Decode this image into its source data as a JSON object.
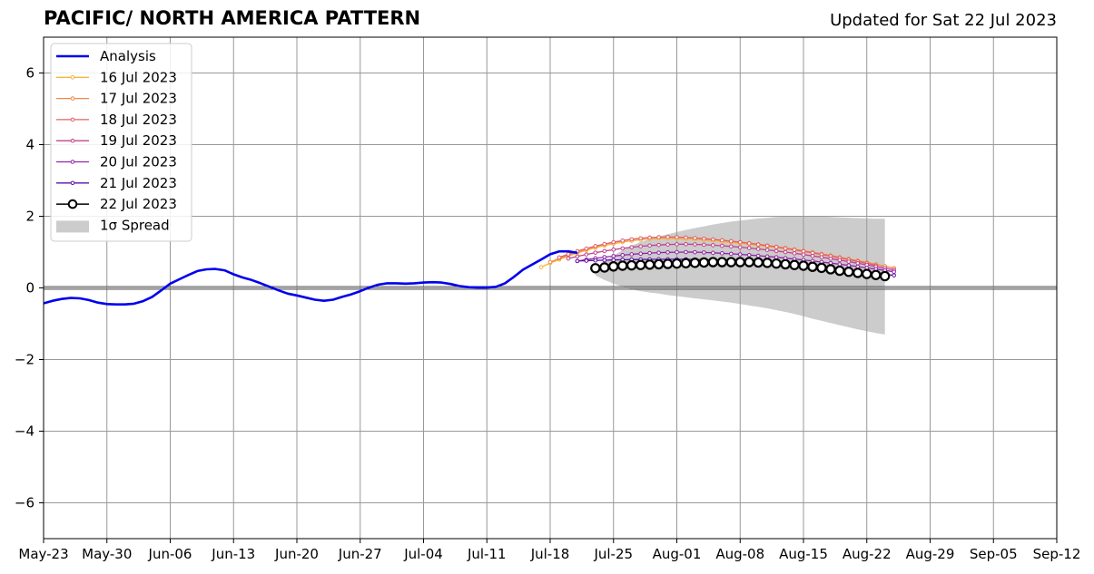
{
  "chart_data": {
    "type": "line",
    "title": "PACIFIC/ NORTH AMERICA PATTERN",
    "subtitle": "Updated for Sat 22 Jul 2023",
    "ylim": [
      -7,
      7
    ],
    "xlim": [
      "2023-05-23",
      "2023-09-12"
    ],
    "yticks": [
      6,
      4,
      2,
      0,
      -2,
      -4,
      -6
    ],
    "ytick_labels": [
      "6",
      "4",
      "2",
      "0",
      "−2",
      "−4",
      "−6"
    ],
    "xticks": [
      "2023-05-23",
      "2023-05-30",
      "2023-06-06",
      "2023-06-13",
      "2023-06-20",
      "2023-06-27",
      "2023-07-04",
      "2023-07-11",
      "2023-07-18",
      "2023-07-25",
      "2023-08-01",
      "2023-08-08",
      "2023-08-15",
      "2023-08-22",
      "2023-08-29",
      "2023-09-05",
      "2023-09-12"
    ],
    "xtick_labels": [
      "May-23",
      "May-30",
      "Jun-06",
      "Jun-13",
      "Jun-20",
      "Jun-27",
      "Jul-04",
      "Jul-11",
      "Jul-18",
      "Jul-25",
      "Aug-01",
      "Aug-08",
      "Aug-15",
      "Aug-22",
      "Aug-29",
      "Sep-05",
      "Sep-12"
    ],
    "grid": true,
    "legend_position": "top-left",
    "analysis": {
      "name": "Analysis",
      "color": "#0000ee",
      "x": [
        "2023-05-23",
        "2023-05-24",
        "2023-05-25",
        "2023-05-26",
        "2023-05-27",
        "2023-05-28",
        "2023-05-29",
        "2023-05-30",
        "2023-05-31",
        "2023-06-01",
        "2023-06-02",
        "2023-06-03",
        "2023-06-04",
        "2023-06-05",
        "2023-06-06",
        "2023-06-07",
        "2023-06-08",
        "2023-06-09",
        "2023-06-10",
        "2023-06-11",
        "2023-06-12",
        "2023-06-13",
        "2023-06-14",
        "2023-06-15",
        "2023-06-16",
        "2023-06-17",
        "2023-06-18",
        "2023-06-19",
        "2023-06-20",
        "2023-06-21",
        "2023-06-22",
        "2023-06-23",
        "2023-06-24",
        "2023-06-25",
        "2023-06-26",
        "2023-06-27",
        "2023-06-28",
        "2023-06-29",
        "2023-06-30",
        "2023-07-01",
        "2023-07-02",
        "2023-07-03",
        "2023-07-04",
        "2023-07-05",
        "2023-07-06",
        "2023-07-07",
        "2023-07-08",
        "2023-07-09",
        "2023-07-10",
        "2023-07-11",
        "2023-07-12",
        "2023-07-13",
        "2023-07-14",
        "2023-07-15",
        "2023-07-16",
        "2023-07-17",
        "2023-07-18",
        "2023-07-19",
        "2023-07-20",
        "2023-07-21"
      ],
      "y": [
        -0.43,
        -0.36,
        -0.31,
        -0.28,
        -0.29,
        -0.34,
        -0.41,
        -0.45,
        -0.46,
        -0.46,
        -0.44,
        -0.37,
        -0.25,
        -0.07,
        0.12,
        0.24,
        0.36,
        0.47,
        0.52,
        0.53,
        0.49,
        0.38,
        0.29,
        0.22,
        0.13,
        0.03,
        -0.07,
        -0.16,
        -0.21,
        -0.27,
        -0.33,
        -0.36,
        -0.33,
        -0.25,
        -0.18,
        -0.09,
        0.01,
        0.09,
        0.13,
        0.13,
        0.12,
        0.13,
        0.15,
        0.16,
        0.15,
        0.11,
        0.05,
        0.02,
        0.01,
        0.01,
        0.03,
        0.13,
        0.31,
        0.51,
        0.65,
        0.79,
        0.94,
        1.02,
        1.02,
        0.98
      ]
    },
    "forecasts": [
      {
        "name": "16 Jul 2023",
        "color": "#f5b53a",
        "start": "2023-07-17",
        "end": "2023-08-25",
        "y_start": 0.58,
        "y_peak": 1.38,
        "peak_date": "2023-07-31",
        "y_end": 0.55
      },
      {
        "name": "17 Jul 2023",
        "color": "#f08a45",
        "start": "2023-07-18",
        "end": "2023-08-25",
        "y_start": 0.72,
        "y_peak": 1.42,
        "peak_date": "2023-07-31",
        "y_end": 0.55
      },
      {
        "name": "18 Jul 2023",
        "color": "#e0606c",
        "start": "2023-07-19",
        "end": "2023-08-23",
        "y_start": 0.85,
        "y_peak": 1.42,
        "peak_date": "2023-07-31",
        "y_end": 0.63
      },
      {
        "name": "19 Jul 2023",
        "color": "#c2428e",
        "start": "2023-07-20",
        "end": "2023-08-25",
        "y_start": 0.82,
        "y_peak": 1.22,
        "peak_date": "2023-08-02",
        "y_end": 0.5
      },
      {
        "name": "20 Jul 2023",
        "color": "#9122a8",
        "start": "2023-07-21",
        "end": "2023-08-25",
        "y_start": 0.75,
        "y_peak": 1.0,
        "peak_date": "2023-08-02",
        "y_end": 0.45
      },
      {
        "name": "21 Jul 2023",
        "color": "#5b0ea8",
        "start": "2023-07-21",
        "end": "2023-08-25",
        "y_start": 0.75,
        "y_peak": 0.8,
        "peak_date": "2023-08-01",
        "y_end": 0.35
      }
    ],
    "current_forecast": {
      "name": "22 Jul 2023",
      "color": "#000000",
      "marker_fill": "#ffffff",
      "x_start": "2023-07-23",
      "y": [
        0.55,
        0.57,
        0.6,
        0.62,
        0.63,
        0.64,
        0.65,
        0.66,
        0.67,
        0.68,
        0.69,
        0.7,
        0.71,
        0.72,
        0.72,
        0.72,
        0.72,
        0.72,
        0.71,
        0.7,
        0.68,
        0.66,
        0.64,
        0.62,
        0.59,
        0.56,
        0.52,
        0.48,
        0.45,
        0.42,
        0.39,
        0.36,
        0.33
      ]
    },
    "spread": {
      "name": "1σ Spread",
      "color": "#cccccc",
      "x_start": "2023-07-23",
      "upper": [
        0.52,
        0.72,
        0.9,
        1.05,
        1.18,
        1.28,
        1.36,
        1.44,
        1.5,
        1.56,
        1.62,
        1.67,
        1.72,
        1.77,
        1.81,
        1.85,
        1.88,
        1.91,
        1.94,
        1.96,
        1.98,
        1.99,
        2.0,
        2.0,
        2.0,
        1.99,
        1.98,
        1.97,
        1.96,
        1.95,
        1.94,
        1.93,
        1.93
      ],
      "lower": [
        0.35,
        0.22,
        0.12,
        0.03,
        -0.04,
        -0.09,
        -0.13,
        -0.16,
        -0.2,
        -0.23,
        -0.26,
        -0.29,
        -0.32,
        -0.35,
        -0.38,
        -0.41,
        -0.45,
        -0.49,
        -0.53,
        -0.57,
        -0.62,
        -0.67,
        -0.73,
        -0.79,
        -0.86,
        -0.92,
        -0.98,
        -1.04,
        -1.1,
        -1.16,
        -1.21,
        -1.26,
        -1.3
      ]
    }
  }
}
